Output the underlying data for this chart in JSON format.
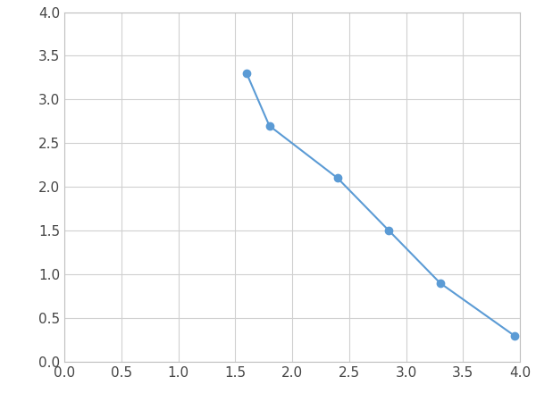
{
  "x": [
    1.6,
    1.8,
    2.4,
    2.85,
    3.3,
    3.95
  ],
  "y": [
    3.3,
    2.7,
    2.1,
    1.5,
    0.9,
    0.3
  ],
  "line_color": "#5b9bd5",
  "marker_color": "#5b9bd5",
  "marker_style": "o",
  "marker_size": 6,
  "line_width": 1.5,
  "xlim": [
    0.0,
    4.0
  ],
  "ylim": [
    0.0,
    4.0
  ],
  "xticks": [
    0.0,
    0.5,
    1.0,
    1.5,
    2.0,
    2.5,
    3.0,
    3.5,
    4.0
  ],
  "yticks": [
    0.0,
    0.5,
    1.0,
    1.5,
    2.0,
    2.5,
    3.0,
    3.5,
    4.0
  ],
  "grid_color": "#d0d0d0",
  "grid_linewidth": 0.8,
  "background_color": "#ffffff",
  "tick_fontsize": 11,
  "spine_color": "#c0c0c0"
}
